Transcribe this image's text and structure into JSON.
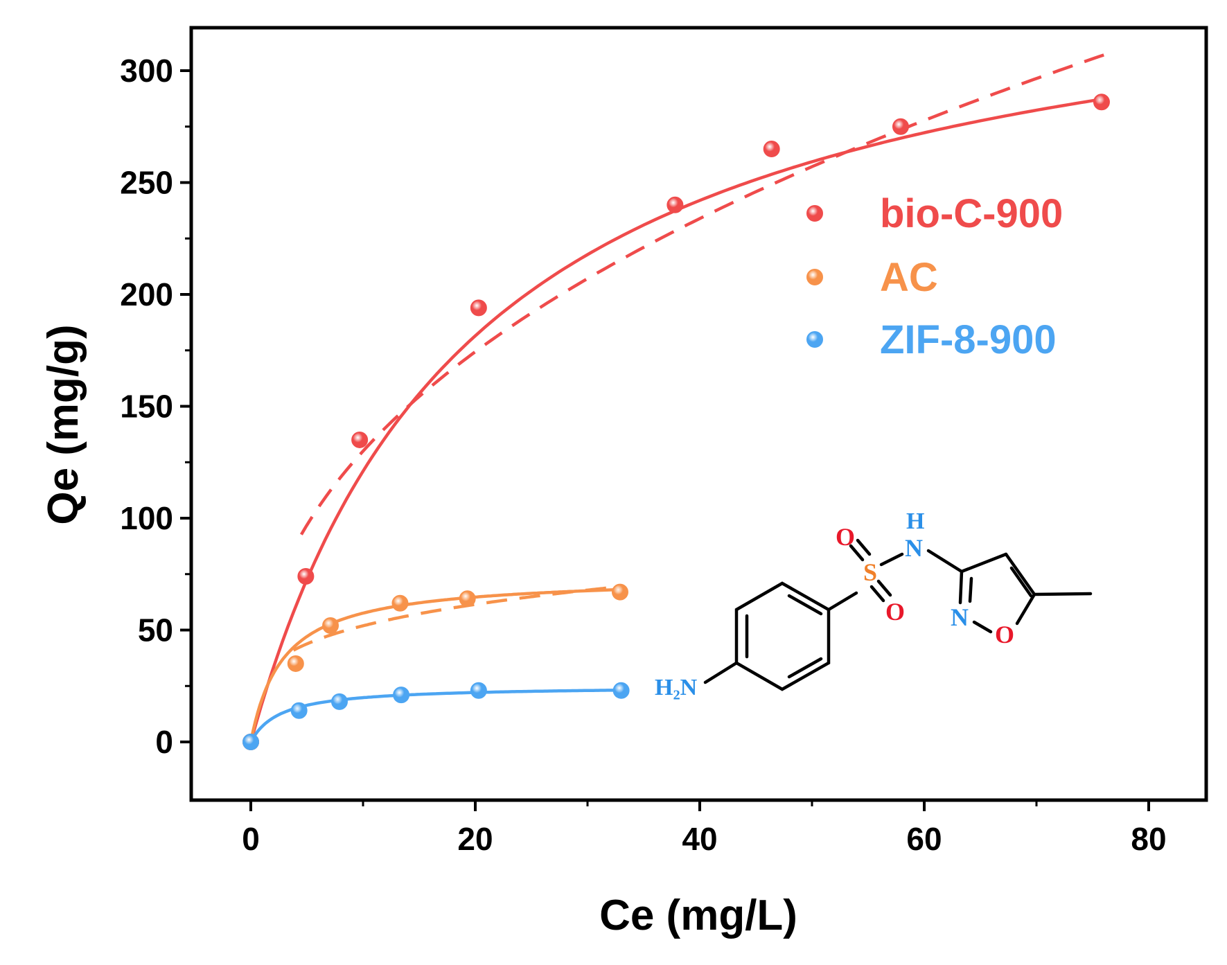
{
  "chart_data": {
    "type": "scatter",
    "xlabel": "Ce (mg/L)",
    "ylabel": "Qe (mg/g)",
    "xlim": [
      -5,
      85
    ],
    "ylim": [
      -25,
      320
    ],
    "x_ticks": [
      "0",
      "20",
      "40",
      "60",
      "80"
    ],
    "y_ticks": [
      "0",
      "50",
      "100",
      "150",
      "200",
      "250",
      "300"
    ],
    "grid": false,
    "legend_position": "upper-right",
    "series": [
      {
        "name": "bio-C-900",
        "color": "#ef4b4b",
        "points": [
          [
            0,
            0
          ],
          [
            4.9,
            74
          ],
          [
            9.7,
            135
          ],
          [
            20.3,
            194
          ],
          [
            37.8,
            240
          ],
          [
            46.4,
            265
          ],
          [
            57.9,
            275
          ],
          [
            75.8,
            286
          ]
        ],
        "fit_solid": {
          "type": "langmuir",
          "qmax": 363,
          "kl": 0.05
        },
        "fit_dashed": {
          "type": "freundlich",
          "kf": 49,
          "n": 2.36,
          "x_range": [
            4.5,
            76
          ]
        }
      },
      {
        "name": "AC",
        "color": "#f7924a",
        "points": [
          [
            0,
            0
          ],
          [
            4.0,
            35
          ],
          [
            7.1,
            52
          ],
          [
            13.3,
            62
          ],
          [
            19.3,
            64
          ],
          [
            32.9,
            67
          ]
        ],
        "fit_solid": {
          "type": "langmuir",
          "qmax": 74,
          "kl": 0.35
        },
        "fit_dashed": {
          "type": "freundlich",
          "kf": 29.6,
          "n": 4.1,
          "x_range": [
            3.8,
            33
          ]
        }
      },
      {
        "name": "ZIF-8-900",
        "color": "#4ca5f2",
        "points": [
          [
            0,
            0
          ],
          [
            4.3,
            14
          ],
          [
            7.9,
            18
          ],
          [
            13.4,
            21
          ],
          [
            20.3,
            23
          ],
          [
            33.0,
            23
          ]
        ],
        "fit_solid": {
          "type": "langmuir",
          "qmax": 25,
          "kl": 0.38
        }
      }
    ],
    "inset_molecule": {
      "labels": {
        "amine": "H₂N",
        "oxygen_top": "O",
        "sulfur": "S",
        "oxygen_bottom": "O",
        "nh_h": "H",
        "nh_n": "N",
        "ring_n": "N",
        "ring_o": "O"
      }
    }
  }
}
